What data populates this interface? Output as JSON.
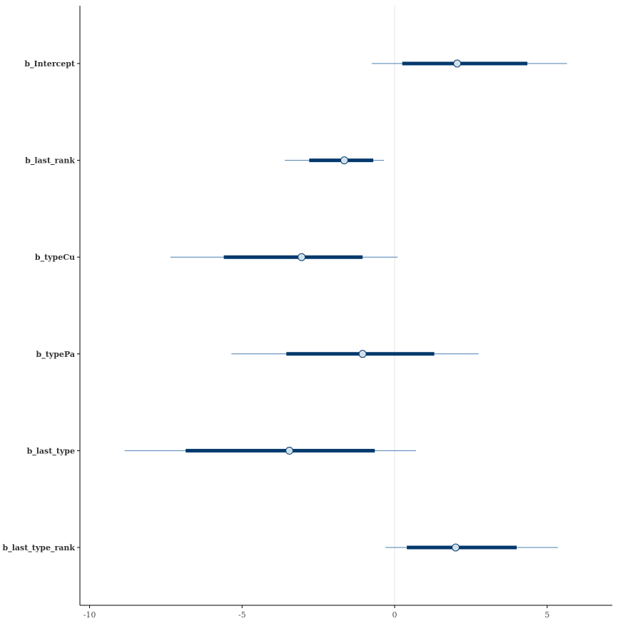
{
  "chart_data": {
    "type": "interval",
    "parameters": [
      "b_Intercept",
      "b_last_rank",
      "b_typeCu",
      "b_typePa",
      "b_last_type",
      "b_last_type_rank"
    ],
    "series": [
      {
        "name": "b_Intercept",
        "median": 2.05,
        "inner": [
          0.25,
          4.35
        ],
        "outer": [
          -0.75,
          5.65
        ]
      },
      {
        "name": "b_last_rank",
        "median": -1.65,
        "inner": [
          -2.8,
          -0.7
        ],
        "outer": [
          -3.6,
          -0.35
        ]
      },
      {
        "name": "b_typeCu",
        "median": -3.05,
        "inner": [
          -5.6,
          -1.05
        ],
        "outer": [
          -7.35,
          0.1
        ]
      },
      {
        "name": "b_typePa",
        "median": -1.05,
        "inner": [
          -3.55,
          1.3
        ],
        "outer": [
          -5.35,
          2.75
        ]
      },
      {
        "name": "b_last_type",
        "median": -3.45,
        "inner": [
          -6.85,
          -0.65
        ],
        "outer": [
          -8.85,
          0.7
        ]
      },
      {
        "name": "b_last_type_rank",
        "median": 2.0,
        "inner": [
          0.4,
          4.0
        ],
        "outer": [
          -0.3,
          5.35
        ]
      }
    ],
    "x_ticks": [
      -10,
      -5,
      0,
      5
    ],
    "x_tick_labels": [
      "-10",
      "-5",
      "0",
      "5"
    ],
    "xlim": [
      -10.4,
      7.1
    ],
    "reference_line": 0,
    "grid": false,
    "colors": {
      "interval": "#03396c",
      "outer_line": "#4a7fb0",
      "point_fill": "#d1e1ec",
      "point_stroke": "#03396c",
      "axis": "#000000",
      "reference": "#e6e6e6"
    }
  }
}
